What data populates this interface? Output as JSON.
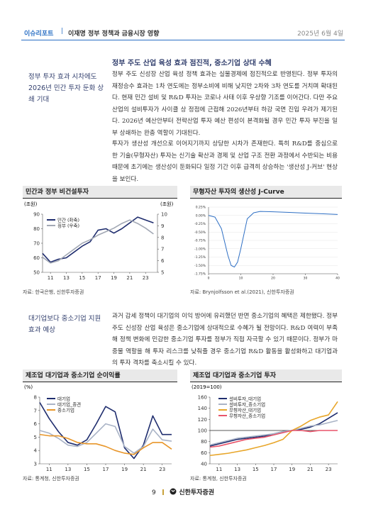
{
  "header": {
    "section": "이슈리포트",
    "title": "이재명 정부 정책과 금융시장 영향",
    "date": "2025년 6월 4일"
  },
  "sections": [
    {
      "side_title": "정부 투자 효과 시차에도 2026년 민간 투자 둔화 상쇄 기대",
      "heading": "정부 주도 산업 육성 효과 점진적, 중소기업 상대 수혜",
      "paragraphs": [
        "정부 주도 신성장 산업 육성 정책 효과는 실물경제에 점진적으로 반영된다. 정부 투자의 재정승수 효과는 1차 연도에는 정부소비에 비해 낮지만 2차와 3차 연도를 거치며 확대된다. 현재 민간 설비 및 R&D 투자는 코로나 사태 이후 우상향 기조를 이어간다. 다만 주요 산업의 설비투자가 사이클 상 정점에 근접해 2026년부터 하강 국면 진입 우려가 제기된다. 2026년 예산안부터 전략산업 투자 예산 편성이 본격화될 경우 민간 투자 부진을 일부 상쇄하는 완충 역할이 기대된다.",
        "투자가 생산성 개선으로 이어지기까지 상당한 시차가 존재한다. 특히 R&D를 중심으로 한 기술(무형자산) 투자는 신기술 확산과 경제 및 산업 구조 전환 과정에서 수반되는 비용 때문에 초기에는 생산성이 둔화되다 일정 기간 이후 급격히 상승하는 '생산성 J-커브' 현상을 보인다."
      ]
    },
    {
      "side_title": "대기업보다 중소기업 지원 효과 예상",
      "paragraphs": [
        "과거 감세 정책이 대기업의 이익 방어에 유리했던 반면 중소기업의 혜택은 제한됐다. 정부 주도 신성장 산업 육성은 중소기업에 상대적으로 수혜가 될 전망이다. R&D 여력이 부족해 정책 변화에 민감한 중소기업 투자를 정부가 직접 자극할 수 있기 때문이다. 정부가 마중물 역할을 해 투자 리스크를 낮춰줄 경우 중소기업 R&D 활동을 활성화하고 대기업과의 투자 격차를 축소시킬 수 있다."
      ]
    }
  ],
  "chart_data": [
    {
      "type": "line",
      "title": "민간과 정부 비건설투자",
      "unit": "(조원)",
      "y2unit": "(조원)",
      "source": "자료: 한국은행, 신한투자증권",
      "x": [
        10,
        11,
        12,
        13,
        14,
        15,
        16,
        17,
        18,
        19,
        20,
        21,
        22,
        23,
        24
      ],
      "xlim": [
        10,
        24.5
      ],
      "xticks": [
        11,
        13,
        15,
        17,
        19,
        21,
        23
      ],
      "ylim": [
        50,
        90
      ],
      "yticks": [
        50,
        60,
        70,
        80,
        90
      ],
      "y2lim": [
        5,
        10
      ],
      "y2ticks": [
        5,
        6,
        7,
        8,
        9,
        10
      ],
      "series": [
        {
          "name": "민간 (좌축)",
          "color": "#1f2d6e",
          "values": [
            63,
            57,
            59,
            60,
            64,
            68,
            71,
            79,
            80,
            77,
            80,
            84,
            88,
            86,
            84
          ]
        },
        {
          "name": "정부 (우축)",
          "color": "#a2a8b4",
          "axis": "y2",
          "values": [
            6.3,
            5.8,
            6.0,
            6.5,
            7.0,
            7.5,
            7.8,
            8.2,
            8.5,
            8.8,
            9.2,
            9.5,
            9.2,
            8.8,
            8.3
          ]
        }
      ]
    },
    {
      "type": "line",
      "title": "무형자산 투자의 생산성 J-Curve",
      "source": "자료: Brynjolfsson et al.(2021), 신한투자증권",
      "grid": true,
      "x": [
        0,
        2,
        4,
        6,
        7,
        8,
        9,
        10,
        12,
        14,
        16,
        20,
        25,
        30,
        35,
        40
      ],
      "xlim": [
        0,
        40
      ],
      "xticks": [
        0,
        10,
        20,
        30,
        40
      ],
      "ylim": [
        -1.75,
        0.25
      ],
      "yticks": [
        {
          "value": -1.75,
          "label": "-1.75%"
        },
        {
          "value": -1.5,
          "label": "-1.50%"
        },
        {
          "value": -1.25,
          "label": "-1.25%"
        },
        {
          "value": -1,
          "label": "-1.00%"
        },
        {
          "value": -0.75,
          "label": "-0.75%"
        },
        {
          "value": -0.5,
          "label": "-0.50%"
        },
        {
          "value": -0.25,
          "label": "-0.25%"
        },
        {
          "value": 0,
          "label": "0.00%"
        },
        {
          "value": 0.25,
          "label": "0.25%"
        }
      ],
      "series": [
        {
          "color": "#2e6fc4",
          "values": [
            0.0,
            -0.05,
            -0.4,
            -1.2,
            -1.5,
            -1.55,
            -1.4,
            -1.0,
            -0.1,
            0.08,
            0.12,
            0.11,
            0.09,
            0.07,
            0.05,
            0.03
          ]
        }
      ]
    },
    {
      "type": "line",
      "title": "제조업 대기업과 중소기업 순이익률",
      "unit": "(%)",
      "source": "자료: 통계청, 신한투자증권",
      "x": [
        10,
        11,
        12,
        13,
        14,
        15,
        16,
        17,
        18,
        19,
        20,
        21,
        22,
        23,
        24
      ],
      "xlim": [
        10,
        24
      ],
      "xticks": [
        11,
        13,
        15,
        17,
        19,
        21,
        23
      ],
      "ylim": [
        3,
        8
      ],
      "yticks": [
        3,
        4,
        5,
        6,
        7,
        8
      ],
      "series": [
        {
          "name": "대기업",
          "color": "#1f2d6e",
          "values": [
            7.6,
            6.4,
            5.4,
            4.6,
            4.4,
            4.8,
            6.0,
            7.3,
            6.9,
            4.2,
            3.4,
            4.4,
            6.6,
            5.2,
            5.2
          ]
        },
        {
          "name": "대기업_중견",
          "color": "#a9b3c6",
          "values": [
            5.5,
            5.3,
            4.9,
            4.4,
            4.3,
            4.6,
            5.3,
            6.0,
            5.8,
            4.3,
            3.8,
            4.3,
            5.6,
            4.8,
            4.7
          ]
        },
        {
          "name": "중소기업",
          "color": "#e8962a",
          "values": [
            5.2,
            5.1,
            5.1,
            4.9,
            4.6,
            4.5,
            4.5,
            4.3,
            4.0,
            3.8,
            3.7,
            4.2,
            4.6,
            4.6,
            4.1
          ]
        }
      ]
    },
    {
      "type": "line",
      "title": "제조업 대기업과 중소기업 투자",
      "unit": "(2019=100)",
      "source": "자료: 통계청, 신한투자증권",
      "reference_line": 100,
      "x": [
        10,
        11,
        12,
        13,
        14,
        15,
        16,
        17,
        18,
        19,
        20,
        21,
        22,
        23,
        24
      ],
      "xlim": [
        10,
        24
      ],
      "xticks": [
        11,
        13,
        15,
        17,
        19,
        21,
        23
      ],
      "ylim": [
        40,
        160
      ],
      "yticks": [
        40,
        60,
        80,
        100,
        120,
        140,
        160
      ],
      "series": [
        {
          "name": "설비투자_대기업",
          "color": "#1f2d6e",
          "values": [
            72,
            76,
            80,
            84,
            86,
            88,
            90,
            94,
            98,
            100,
            102,
            106,
            112,
            122,
            132
          ]
        },
        {
          "name": "설비투자_중소기업",
          "color": "#a9b3c6",
          "values": [
            74,
            78,
            82,
            86,
            88,
            90,
            92,
            94,
            98,
            100,
            104,
            108,
            110,
            114,
            118
          ]
        },
        {
          "name": "무형자산_대기업",
          "color": "#e8a62a",
          "values": [
            55,
            57,
            59,
            62,
            65,
            69,
            73,
            78,
            84,
            100,
            108,
            118,
            124,
            128,
            152
          ]
        },
        {
          "name": "무형자산_중소기업",
          "color": "#e8546a",
          "values": [
            70,
            72,
            76,
            80,
            84,
            86,
            88,
            92,
            96,
            100,
            100,
            98,
            100,
            100,
            100
          ]
        }
      ]
    }
  ],
  "footer": {
    "page": "9",
    "brand": "신한투자증권"
  }
}
